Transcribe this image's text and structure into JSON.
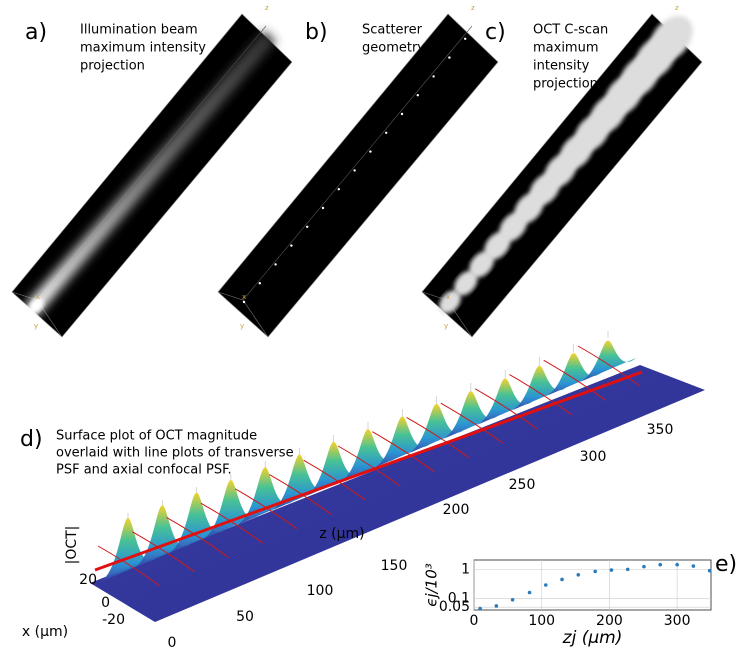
{
  "panels": [
    {
      "label": "a)",
      "caption": [
        "Illumination beam",
        "maximum intensity",
        "projection"
      ],
      "corner_labels": [
        "z",
        "x",
        "y"
      ]
    },
    {
      "label": "b)",
      "caption": [
        "Scatterer",
        "geometry"
      ],
      "corner_labels": [
        "z",
        "x",
        "y"
      ]
    },
    {
      "label": "c)",
      "caption": [
        "OCT C-scan",
        "maximum",
        "intensity",
        "projection"
      ],
      "corner_labels": [
        "z",
        "x",
        "y"
      ]
    }
  ],
  "panel_d": {
    "label": "d)",
    "caption": [
      "Surface plot of OCT magnitude",
      "overlaid with line plots of transverse",
      "PSF and axial confocal PSF."
    ],
    "vertical_label": "|OCT|",
    "z_title": "z (μm)",
    "x_title": "x (μm)",
    "zticks": [
      0,
      50,
      100,
      150,
      200,
      250,
      300,
      350
    ],
    "xticks": [
      20,
      0,
      -20
    ]
  },
  "chart_data": {
    "type": "scatter",
    "label": "e)",
    "xlabel": "zj (μm)",
    "ylabel": "ϵj/10³",
    "x": [
      9,
      33,
      57,
      82,
      106,
      130,
      154,
      179,
      203,
      227,
      251,
      275,
      300,
      324,
      348
    ],
    "values": [
      0.045,
      0.055,
      0.09,
      0.16,
      0.29,
      0.45,
      0.65,
      0.85,
      0.95,
      1.0,
      1.24,
      1.45,
      1.45,
      1.3,
      0.9
    ],
    "color": "#2b7bba",
    "xlim": [
      0,
      350
    ],
    "ylim": [
      0.04,
      2.1
    ],
    "xticks": [
      0,
      100,
      200,
      300
    ],
    "yticks": [
      0.05,
      0.1,
      1
    ],
    "log_y": true,
    "grid": true
  }
}
